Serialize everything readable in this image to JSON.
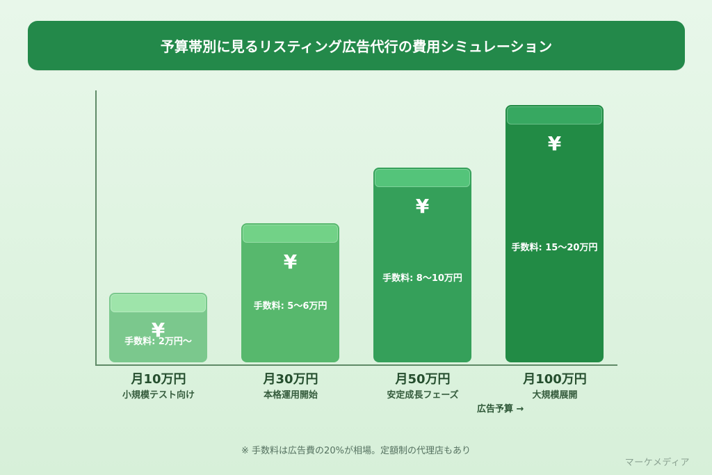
{
  "title": "予算帯別に見るリスティング広告代行の費用シミュレーション",
  "chart_data": {
    "type": "bar",
    "categories": [
      "月10万円",
      "月30万円",
      "月50万円",
      "月100万円"
    ],
    "category_subtitles": [
      "小規模テスト向け",
      "本格運用開始",
      "安定成長フェーズ",
      "大規模展開"
    ],
    "values": [
      10,
      30,
      50,
      100
    ],
    "bar_annotations": [
      "手数料: 2万円〜",
      "手数料: 5〜6万円",
      "手数料: 8〜10万円",
      "手数料: 15〜20万円"
    ],
    "bar_icon": "¥",
    "xlabel": "広告予算 →",
    "ylabel": "",
    "colors": [
      "#7bc88d",
      "#57b86d",
      "#35a05a",
      "#228b45"
    ],
    "cap_colors": [
      "#9ee4aa",
      "#72d287",
      "#54c47a",
      "#37a861"
    ],
    "legend": "none"
  },
  "footnote": "※ 手数料は広告費の20%が相場。定額制の代理店もあり",
  "brand": "マーケメディア"
}
